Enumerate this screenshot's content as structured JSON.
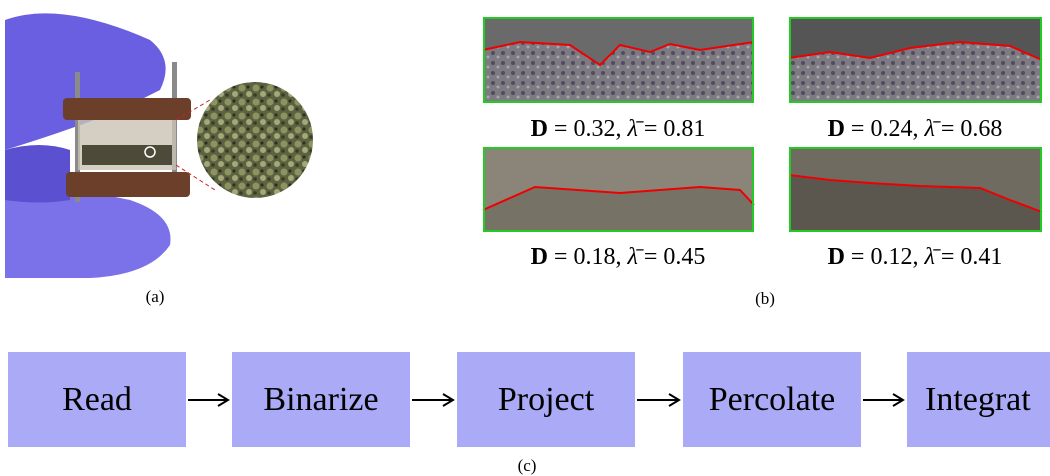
{
  "panel_a": {
    "caption": "(a)"
  },
  "panel_b": {
    "caption": "(b)",
    "items": [
      {
        "d_symbol": "D",
        "d_text": "= 0.32,",
        "lambda_symbol": "λ̄",
        "lambda_text": "= 0.81"
      },
      {
        "d_symbol": "D",
        "d_text": "= 0.24,",
        "lambda_symbol": "λ̄",
        "lambda_text": "= 0.68"
      },
      {
        "d_symbol": "D",
        "d_text": "= 0.18,",
        "lambda_symbol": "λ̄",
        "lambda_text": "= 0.45"
      },
      {
        "d_symbol": "D",
        "d_text": "= 0.12,",
        "lambda_symbol": "λ̄",
        "lambda_text": "= 0.41"
      }
    ]
  },
  "panel_c": {
    "caption": "(c)",
    "steps": [
      "Read",
      "Binarize",
      "Project",
      "Percolate",
      "Integrat"
    ]
  }
}
